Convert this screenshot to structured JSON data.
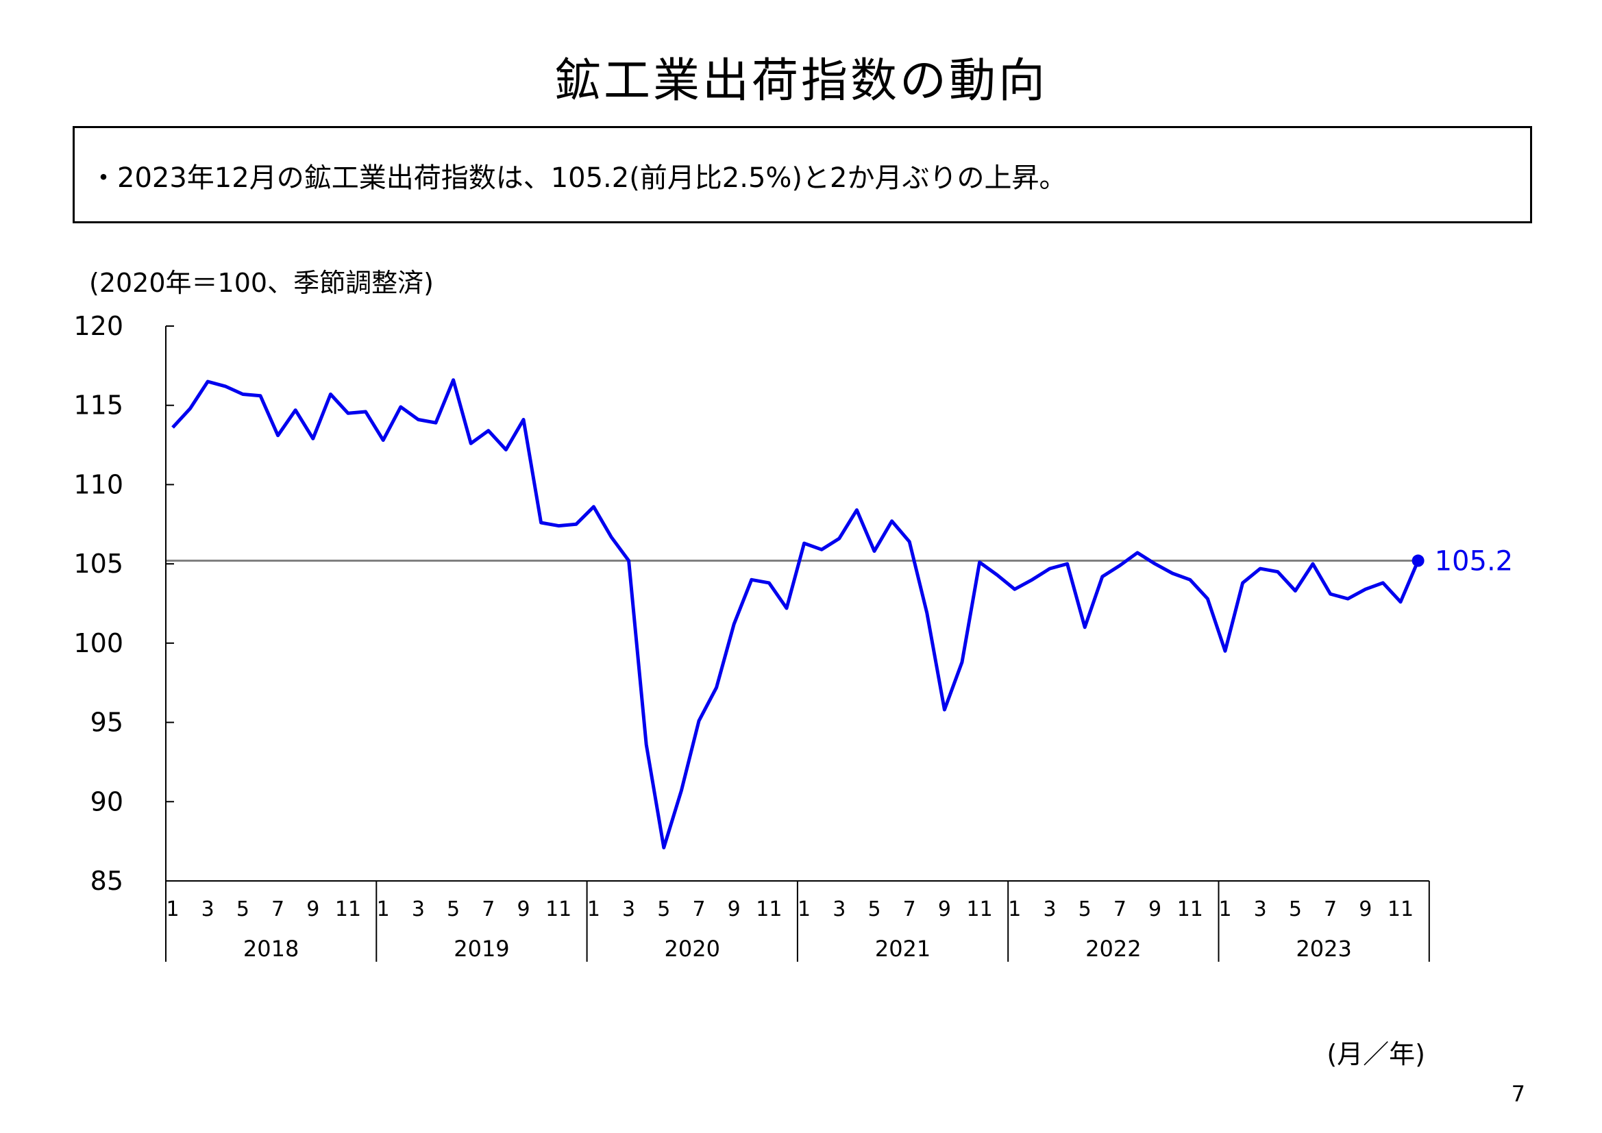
{
  "title": "鉱工業出荷指数の動向",
  "summary": "・2023年12月の鉱工業出荷指数は、105.2(前月比2.5%)と2か月ぶりの上昇。",
  "page_number": "7",
  "chart_data": {
    "type": "line",
    "unit_note": "(2020年＝100、季節調整済)",
    "x_unit_label": "(月／年)",
    "ylim": [
      85,
      120
    ],
    "y_ticks": [
      "85",
      "90",
      "95",
      "100",
      "105",
      "110",
      "115",
      "120"
    ],
    "years": [
      "2018",
      "2019",
      "2020",
      "2021",
      "2022",
      "2023"
    ],
    "month_tick_labels": [
      "1",
      "3",
      "5",
      "7",
      "9",
      "11"
    ],
    "reference_line": 105.2,
    "latest_value_label": "105.2",
    "colors": {
      "series": "#0000ee",
      "reference": "#808080",
      "axis": "#000000"
    },
    "series": [
      {
        "values": [
          113.6,
          114.8,
          116.5,
          116.2,
          115.7,
          115.6,
          113.1,
          114.7,
          112.9,
          115.7,
          114.5,
          114.6,
          112.8,
          114.9,
          114.1,
          113.9,
          116.6,
          112.6,
          113.4,
          112.2,
          114.1,
          107.6,
          107.4,
          107.5,
          108.6,
          106.7,
          105.2,
          93.6,
          87.1,
          90.7,
          95.1,
          97.2,
          101.2,
          104.0,
          103.8,
          102.2,
          106.3,
          105.9,
          106.6,
          108.4,
          105.8,
          107.7,
          106.4,
          101.9,
          95.8,
          98.8,
          105.1,
          104.3,
          103.4,
          104.0,
          104.7,
          105.0,
          101.0,
          104.2,
          104.9,
          105.7,
          105.0,
          104.4,
          104.0,
          102.8,
          99.5,
          103.8,
          104.7,
          104.5,
          103.3,
          105.0,
          103.1,
          102.8,
          103.4,
          103.8,
          102.6,
          105.2
        ]
      }
    ]
  }
}
